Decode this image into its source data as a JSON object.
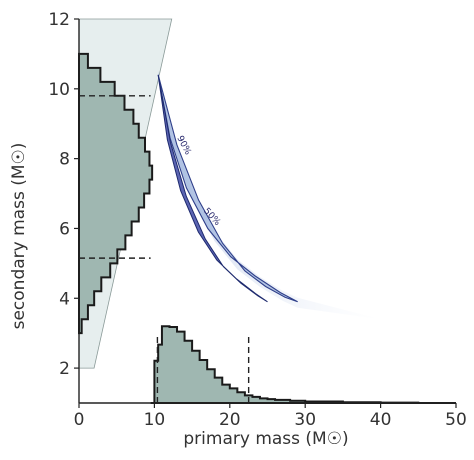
{
  "chart_data": {
    "type": "scatter",
    "xlabel": "primary mass (M☉)",
    "ylabel": "secondary mass (M☉)",
    "xlim": [
      0,
      50
    ],
    "ylim": [
      1,
      12
    ],
    "x_ticks": [
      "0",
      "10",
      "20",
      "30",
      "40",
      "50"
    ],
    "y_ticks": [
      "2",
      "4",
      "6",
      "8",
      "10",
      "12"
    ],
    "grid": false,
    "colors": {
      "histogram_fill": "#9fb7b1",
      "histogram_edge": "#1a1a1a",
      "excluded_region": "#e6eeee",
      "contour_outer": "#a9bde0",
      "contour_inner": "#3f4aa6",
      "posterior_haze": "#dde6f3"
    },
    "contours": [
      {
        "label": "90%",
        "level": 0.9
      },
      {
        "label": "50%",
        "level": 0.5
      }
    ],
    "posterior_curve": [
      {
        "x": 10.5,
        "y": 10.4
      },
      {
        "x": 12.5,
        "y": 8.5
      },
      {
        "x": 15,
        "y": 7.0
      },
      {
        "x": 18,
        "y": 5.8
      },
      {
        "x": 21,
        "y": 5.0
      },
      {
        "x": 24,
        "y": 4.5
      },
      {
        "x": 27,
        "y": 4.1
      },
      {
        "x": 29,
        "y": 3.9
      }
    ],
    "primary_histogram": {
      "bin_edges": [
        9.5,
        10,
        10.5,
        11,
        12,
        13,
        14,
        15,
        16,
        17,
        18,
        19,
        20,
        21,
        22,
        23,
        24,
        25,
        26,
        28,
        30,
        35,
        40,
        45,
        50
      ],
      "density": [
        0.0,
        0.55,
        0.76,
        1.0,
        0.99,
        0.93,
        0.81,
        0.68,
        0.56,
        0.44,
        0.33,
        0.24,
        0.19,
        0.14,
        0.1,
        0.08,
        0.06,
        0.05,
        0.04,
        0.03,
        0.02,
        0.01,
        0.005,
        0.0
      ],
      "credible_interval": [
        10.4,
        22.5
      ]
    },
    "secondary_histogram": {
      "bin_edges": [
        3.0,
        3.4,
        3.8,
        4.2,
        4.6,
        5.0,
        5.4,
        5.8,
        6.2,
        6.6,
        7.0,
        7.4,
        7.8,
        8.2,
        8.6,
        9.0,
        9.4,
        9.8,
        10.2,
        10.6,
        11.0
      ],
      "density": [
        0.03,
        0.1,
        0.17,
        0.25,
        0.35,
        0.43,
        0.52,
        0.59,
        0.67,
        0.73,
        0.79,
        0.82,
        0.79,
        0.74,
        0.67,
        0.61,
        0.51,
        0.4,
        0.24,
        0.1
      ],
      "credible_interval": [
        5.15,
        9.8
      ]
    }
  }
}
